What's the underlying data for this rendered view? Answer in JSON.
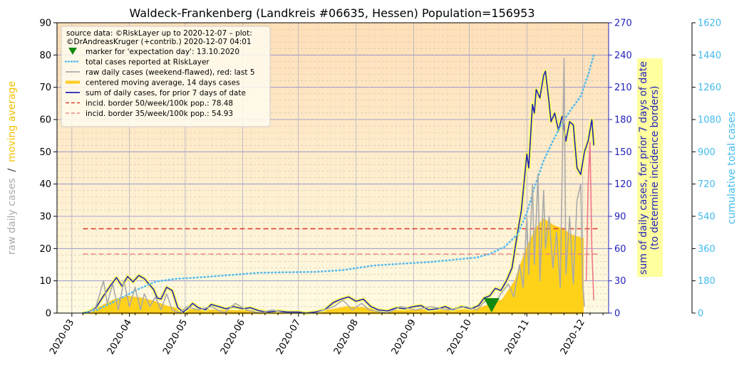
{
  "chart_data": {
    "type": "line",
    "title": "Waldeck-Frankenberg (Landkreis #06635, Hessen) Population=156953",
    "x_ticks": [
      "2020-03",
      "2020-04",
      "2020-05",
      "2020-06",
      "2020-07",
      "2020-08",
      "2020-09",
      "2020-10",
      "2020-11",
      "2020-12"
    ],
    "x_range": [
      "2020-02-22",
      "2020-12-15"
    ],
    "left_axis": {
      "ylim": [
        0,
        90
      ],
      "ticks": [
        0,
        10,
        20,
        30,
        40,
        50,
        60,
        70,
        80,
        90
      ],
      "label_parts": [
        {
          "text": "raw daily cases",
          "color": "#aaaaaa"
        },
        {
          "text": "  /  ",
          "color": "#333333"
        },
        {
          "text": "moving average",
          "color": "#f2c200"
        }
      ]
    },
    "right_axis_1": {
      "ylim": [
        0,
        270
      ],
      "ticks": [
        0,
        30,
        60,
        90,
        120,
        150,
        180,
        210,
        240,
        270
      ],
      "label_line1": "sum of daily cases, for prior 7 days of date",
      "label_line2": "(to determine incidence borders)",
      "color": "#2222bb"
    },
    "right_axis_2": {
      "ylim": [
        0,
        1620
      ],
      "ticks": [
        0,
        180,
        360,
        540,
        720,
        900,
        1080,
        1260,
        1440,
        1620
      ],
      "label": "cumulative total cases",
      "color": "#44bbee"
    },
    "legend": {
      "placement": "top-left",
      "header_line1": "source data: ©RiskLayer up to 2020-12-07 – plot:",
      "header_line2": "©DrAndreasKruger (+contrib.) 2020-12-07 04:01",
      "entries": [
        {
          "label": "marker for 'expectation day': 13.10.2020",
          "kind": "marker",
          "color": "#118811"
        },
        {
          "label": "total cases reported at RiskLayer",
          "kind": "dotted",
          "color": "#55bbee"
        },
        {
          "label": "raw daily cases (weekend-flawed), red: last 5",
          "kind": "line",
          "color": "#aaaaaa"
        },
        {
          "label": "centered moving average, 14 days cases",
          "kind": "thick",
          "color": "#ffcc22"
        },
        {
          "label": "sum of daily cases, for prior 7 days of date",
          "kind": "line",
          "color": "#2222bb"
        },
        {
          "label": "incid. border 50/week/100k pop.: 78.48",
          "kind": "dashed",
          "color": "#dd4433"
        },
        {
          "label": "incid. border 35/week/100k pop.: 54.93",
          "kind": "dashed",
          "color": "#ee8888"
        }
      ]
    },
    "expectation_day": "2020-10-13",
    "incidence_border_50": 78.48,
    "incidence_border_35": 54.93,
    "border_range": [
      "2020-03-07",
      "2020-12-10"
    ],
    "series": [
      {
        "name": "sum of daily cases, for prior 7 days of date",
        "axis": "right1",
        "color": "#2222bb",
        "points": [
          [
            "2020-03-07",
            0
          ],
          [
            "2020-03-10",
            1
          ],
          [
            "2020-03-14",
            5
          ],
          [
            "2020-03-18",
            16
          ],
          [
            "2020-03-22",
            26
          ],
          [
            "2020-03-25",
            33
          ],
          [
            "2020-03-28",
            25
          ],
          [
            "2020-03-31",
            34
          ],
          [
            "2020-04-03",
            29
          ],
          [
            "2020-04-06",
            35
          ],
          [
            "2020-04-09",
            32
          ],
          [
            "2020-04-12",
            26
          ],
          [
            "2020-04-14",
            22
          ],
          [
            "2020-04-16",
            14
          ],
          [
            "2020-04-18",
            13
          ],
          [
            "2020-04-21",
            24
          ],
          [
            "2020-04-24",
            21
          ],
          [
            "2020-04-27",
            5
          ],
          [
            "2020-04-30",
            1
          ],
          [
            "2020-05-03",
            5
          ],
          [
            "2020-05-05",
            9
          ],
          [
            "2020-05-08",
            5
          ],
          [
            "2020-05-12",
            3
          ],
          [
            "2020-05-15",
            8
          ],
          [
            "2020-05-19",
            6
          ],
          [
            "2020-05-23",
            4
          ],
          [
            "2020-05-27",
            6
          ],
          [
            "2020-06-01",
            4
          ],
          [
            "2020-06-05",
            5
          ],
          [
            "2020-06-10",
            2
          ],
          [
            "2020-06-15",
            1
          ],
          [
            "2020-06-20",
            2
          ],
          [
            "2020-06-25",
            1
          ],
          [
            "2020-07-01",
            1
          ],
          [
            "2020-07-05",
            0
          ],
          [
            "2020-07-10",
            1
          ],
          [
            "2020-07-15",
            3
          ],
          [
            "2020-07-20",
            10
          ],
          [
            "2020-07-24",
            13
          ],
          [
            "2020-07-28",
            15
          ],
          [
            "2020-08-01",
            11
          ],
          [
            "2020-08-05",
            13
          ],
          [
            "2020-08-09",
            6
          ],
          [
            "2020-08-13",
            3
          ],
          [
            "2020-08-18",
            2
          ],
          [
            "2020-08-23",
            5
          ],
          [
            "2020-08-27",
            4
          ],
          [
            "2020-09-01",
            6
          ],
          [
            "2020-09-05",
            7
          ],
          [
            "2020-09-09",
            3
          ],
          [
            "2020-09-14",
            4
          ],
          [
            "2020-09-18",
            6
          ],
          [
            "2020-09-22",
            3
          ],
          [
            "2020-09-27",
            6
          ],
          [
            "2020-10-02",
            4
          ],
          [
            "2020-10-06",
            7
          ],
          [
            "2020-10-09",
            14
          ],
          [
            "2020-10-12",
            16
          ],
          [
            "2020-10-15",
            23
          ],
          [
            "2020-10-18",
            21
          ],
          [
            "2020-10-21",
            30
          ],
          [
            "2020-10-24",
            42
          ],
          [
            "2020-10-27",
            75
          ],
          [
            "2020-10-29",
            95
          ],
          [
            "2020-11-01",
            148
          ],
          [
            "2020-11-02",
            135
          ],
          [
            "2020-11-04",
            194
          ],
          [
            "2020-11-05",
            186
          ],
          [
            "2020-11-06",
            208
          ],
          [
            "2020-11-08",
            200
          ],
          [
            "2020-11-10",
            221
          ],
          [
            "2020-11-11",
            225
          ],
          [
            "2020-11-13",
            195
          ],
          [
            "2020-11-14",
            178
          ],
          [
            "2020-11-16",
            186
          ],
          [
            "2020-11-18",
            170
          ],
          [
            "2020-11-20",
            183
          ],
          [
            "2020-11-22",
            160
          ],
          [
            "2020-11-24",
            178
          ],
          [
            "2020-11-26",
            175
          ],
          [
            "2020-11-28",
            135
          ],
          [
            "2020-11-30",
            129
          ],
          [
            "2020-12-02",
            150
          ],
          [
            "2020-12-04",
            160
          ],
          [
            "2020-12-06",
            180
          ],
          [
            "2020-12-07",
            156
          ]
        ]
      },
      {
        "name": "total cases reported at RiskLayer",
        "axis": "right2",
        "color": "#55bbee",
        "points": [
          [
            "2020-03-07",
            0
          ],
          [
            "2020-03-15",
            20
          ],
          [
            "2020-03-25",
            70
          ],
          [
            "2020-04-05",
            130
          ],
          [
            "2020-04-15",
            175
          ],
          [
            "2020-04-25",
            190
          ],
          [
            "2020-05-10",
            200
          ],
          [
            "2020-05-25",
            212
          ],
          [
            "2020-06-10",
            225
          ],
          [
            "2020-06-25",
            228
          ],
          [
            "2020-07-10",
            230
          ],
          [
            "2020-07-25",
            240
          ],
          [
            "2020-08-10",
            265
          ],
          [
            "2020-08-25",
            275
          ],
          [
            "2020-09-10",
            285
          ],
          [
            "2020-09-25",
            300
          ],
          [
            "2020-10-05",
            310
          ],
          [
            "2020-10-12",
            330
          ],
          [
            "2020-10-20",
            370
          ],
          [
            "2020-10-27",
            440
          ],
          [
            "2020-11-01",
            560
          ],
          [
            "2020-11-05",
            700
          ],
          [
            "2020-11-10",
            850
          ],
          [
            "2020-11-15,",
            960
          ],
          [
            "2020-11-20",
            1060
          ],
          [
            "2020-11-25",
            1140
          ],
          [
            "2020-11-30",
            1210
          ],
          [
            "2020-12-04",
            1330
          ],
          [
            "2020-12-07",
            1440
          ]
        ]
      },
      {
        "name": "raw daily cases (weekend-flawed), red: last 5",
        "axis": "left",
        "color": "#aaaaaa",
        "points": [
          [
            "2020-03-10",
            0
          ],
          [
            "2020-03-14",
            2
          ],
          [
            "2020-03-18",
            10
          ],
          [
            "2020-03-20",
            3
          ],
          [
            "2020-03-23",
            9
          ],
          [
            "2020-03-26",
            1
          ],
          [
            "2020-03-29",
            10
          ],
          [
            "2020-04-01",
            2
          ],
          [
            "2020-04-04",
            8
          ],
          [
            "2020-04-07",
            1
          ],
          [
            "2020-04-09",
            6
          ],
          [
            "2020-04-12",
            2
          ],
          [
            "2020-04-15",
            5
          ],
          [
            "2020-04-18",
            1
          ],
          [
            "2020-04-21",
            6
          ],
          [
            "2020-04-24",
            1
          ],
          [
            "2020-04-28",
            0
          ],
          [
            "2020-05-02",
            2
          ],
          [
            "2020-05-08",
            1
          ],
          [
            "2020-05-15",
            2
          ],
          [
            "2020-05-22",
            0
          ],
          [
            "2020-05-28",
            3
          ],
          [
            "2020-06-03",
            1
          ],
          [
            "2020-06-10",
            0
          ],
          [
            "2020-06-17",
            1
          ],
          [
            "2020-06-24",
            0
          ],
          [
            "2020-07-10",
            0
          ],
          [
            "2020-07-20",
            2
          ],
          [
            "2020-07-25",
            4
          ],
          [
            "2020-07-30",
            1
          ],
          [
            "2020-08-04",
            3
          ],
          [
            "2020-08-08",
            1
          ],
          [
            "2020-08-18",
            0
          ],
          [
            "2020-08-25",
            2
          ],
          [
            "2020-09-02",
            1
          ],
          [
            "2020-09-10",
            2
          ],
          [
            "2020-09-20",
            1
          ],
          [
            "2020-09-29",
            2
          ],
          [
            "2020-10-05",
            1
          ],
          [
            "2020-10-10",
            4
          ],
          [
            "2020-10-14",
            2
          ],
          [
            "2020-10-18",
            6
          ],
          [
            "2020-10-22",
            9
          ],
          [
            "2020-10-25",
            5
          ],
          [
            "2020-10-28",
            15
          ],
          [
            "2020-10-30",
            8
          ],
          [
            "2020-11-01",
            30
          ],
          [
            "2020-11-02",
            12
          ],
          [
            "2020-11-04",
            40
          ],
          [
            "2020-11-05",
            15
          ],
          [
            "2020-11-07",
            43
          ],
          [
            "2020-11-08",
            10
          ],
          [
            "2020-11-10",
            38
          ],
          [
            "2020-11-11",
            20
          ],
          [
            "2020-11-13",
            30
          ],
          [
            "2020-11-15",
            14
          ],
          [
            "2020-11-17",
            25
          ],
          [
            "2020-11-19",
            8
          ],
          [
            "2020-11-21",
            79
          ],
          [
            "2020-11-22",
            12
          ],
          [
            "2020-11-24",
            30
          ],
          [
            "2020-11-26",
            9
          ],
          [
            "2020-11-28",
            35
          ],
          [
            "2020-11-30",
            40
          ],
          [
            "2020-12-01",
            10
          ],
          [
            "2020-12-02",
            2
          ]
        ]
      },
      {
        "name": "raw daily cases, last 5",
        "axis": "left",
        "color": "#ee7788",
        "points": [
          [
            "2020-12-03",
            10
          ],
          [
            "2020-12-04",
            40
          ],
          [
            "2020-12-05",
            53
          ],
          [
            "2020-12-06",
            20
          ],
          [
            "2020-12-07",
            4
          ]
        ]
      },
      {
        "name": "centered moving average, 14 days cases",
        "axis": "left",
        "color": "#ffcc22",
        "points": [
          [
            "2020-03-10",
            0
          ],
          [
            "2020-03-17",
            2
          ],
          [
            "2020-03-24",
            4
          ],
          [
            "2020-03-31",
            5
          ],
          [
            "2020-04-07",
            4.5
          ],
          [
            "2020-04-14",
            3.5
          ],
          [
            "2020-04-21",
            2
          ],
          [
            "2020-04-28",
            1
          ],
          [
            "2020-05-10",
            0.8
          ],
          [
            "2020-05-25",
            0.6
          ],
          [
            "2020-06-10",
            0.5
          ],
          [
            "2020-06-25",
            0.2
          ],
          [
            "2020-07-10",
            0.2
          ],
          [
            "2020-07-20",
            1
          ],
          [
            "2020-07-27",
            1.8
          ],
          [
            "2020-08-05",
            1.5
          ],
          [
            "2020-08-15",
            0.5
          ],
          [
            "2020-08-25",
            0.6
          ],
          [
            "2020-09-05",
            0.8
          ],
          [
            "2020-09-20",
            0.6
          ],
          [
            "2020-10-05",
            1
          ],
          [
            "2020-10-12",
            2.5
          ],
          [
            "2020-10-19",
            4
          ],
          [
            "2020-10-26",
            10
          ],
          [
            "2020-11-01",
            20
          ],
          [
            "2020-11-06",
            26
          ],
          [
            "2020-11-10",
            29
          ],
          [
            "2020-11-15",
            27
          ],
          [
            "2020-11-20",
            26
          ],
          [
            "2020-11-25",
            24
          ],
          [
            "2020-12-01",
            23
          ]
        ]
      }
    ]
  }
}
